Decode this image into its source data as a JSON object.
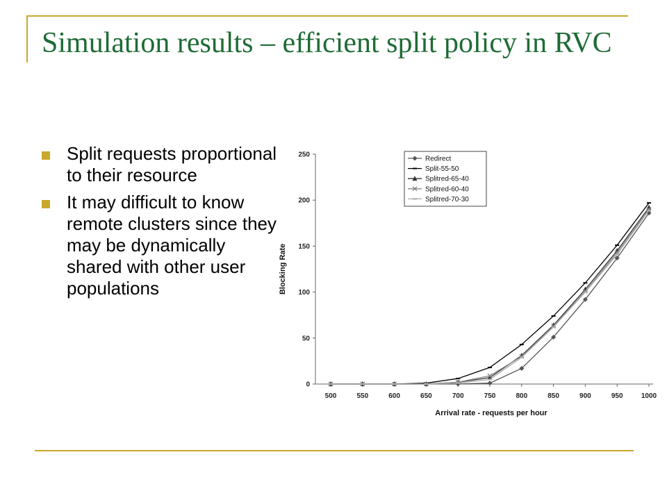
{
  "slide": {
    "title": "Simulation results – efficient split policy in RVC",
    "bullets": [
      "Split requests proportional to their resource",
      "It may difficult to know remote clusters since they may be dynamically shared with other user populations"
    ]
  },
  "colors": {
    "accent": "#c8a82a",
    "title": "#1e6b35"
  },
  "chart_data": {
    "type": "line",
    "title": "",
    "xlabel": "Arrival rate - requests per hour",
    "ylabel": "Blocking Rate",
    "categories": [
      "500",
      "550",
      "600",
      "650",
      "700",
      "750",
      "800",
      "850",
      "900",
      "950",
      "1000"
    ],
    "ylim": [
      0,
      250
    ],
    "yticks": [
      0,
      50,
      100,
      150,
      200,
      250
    ],
    "grid": false,
    "legend_position": "top-right",
    "series": [
      {
        "name": "Redirect",
        "marker": "diamond",
        "color": "#555555",
        "values": [
          0,
          0,
          0,
          0,
          0,
          1,
          17,
          51,
          92,
          137,
          186
        ]
      },
      {
        "name": "Split-55-50",
        "marker": "dash",
        "color": "#000000",
        "values": [
          0,
          0,
          0,
          1,
          6,
          18,
          43,
          74,
          110,
          151,
          197
        ]
      },
      {
        "name": "Splitred-65-40",
        "marker": "triangle",
        "color": "#333333",
        "values": [
          0,
          0,
          0,
          0,
          2,
          7,
          31,
          64,
          103,
          145,
          192
        ]
      },
      {
        "name": "Splitred-60-40",
        "marker": "x",
        "color": "#888888",
        "values": [
          0,
          0,
          0,
          0,
          2,
          9,
          30,
          63,
          101,
          143,
          190
        ]
      },
      {
        "name": "Splitred-70-30",
        "marker": "dash",
        "color": "#aaaaaa",
        "values": [
          0,
          0,
          0,
          0,
          1,
          5,
          29,
          62,
          100,
          141,
          189
        ]
      }
    ]
  }
}
